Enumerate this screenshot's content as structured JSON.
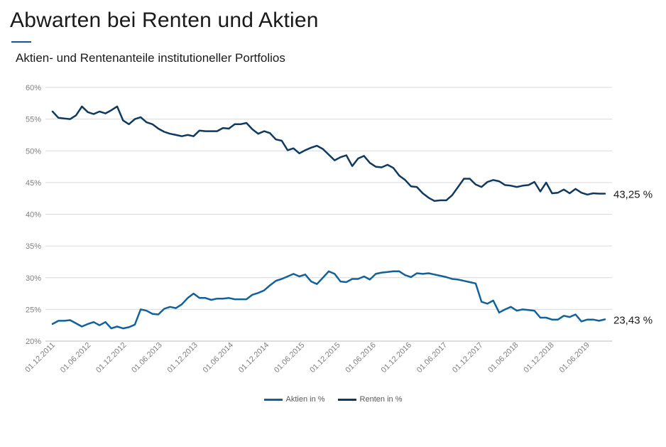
{
  "header": {
    "title": "Abwarten bei Renten und Aktien",
    "subtitle": "Aktien- und Rentenanteile institutioneller Portfolios"
  },
  "colors": {
    "aktien": "#11629b",
    "renten": "#0e3a5f",
    "grid": "#d9d9d9",
    "axis_text": "#7f7f7f",
    "accent": "#0f5a8a"
  },
  "chart_data": {
    "type": "line",
    "title": "",
    "xlabel": "",
    "ylabel": "",
    "ylim": [
      20,
      60
    ],
    "y_ticks": [
      "20%",
      "25%",
      "30%",
      "35%",
      "40%",
      "45%",
      "50%",
      "55%",
      "60%"
    ],
    "x_ticks": [
      "01.12.2011",
      "01.06.2012",
      "01.12.2012",
      "01.06.2013",
      "01.12.2013",
      "01.06.2014",
      "01.12.2014",
      "01.06.2015",
      "01.12.2015",
      "01.06.2016",
      "01.12.2016",
      "01.06.2017",
      "01.12.2017",
      "01.06.2018",
      "01.12.2018",
      "01.06.2019"
    ],
    "x_start": "2011-12",
    "x_end": "2019-09",
    "grid": true,
    "legend": "bottom",
    "series": [
      {
        "name": "Aktien in %",
        "end_label": "23,43 %",
        "values": [
          22.7,
          23.2,
          23.2,
          23.3,
          22.8,
          22.3,
          22.7,
          23.0,
          22.5,
          23.0,
          22.0,
          22.3,
          22.0,
          22.2,
          22.6,
          25.0,
          24.8,
          24.3,
          24.2,
          25.1,
          25.4,
          25.2,
          25.8,
          26.8,
          27.5,
          26.8,
          26.8,
          26.5,
          26.7,
          26.7,
          26.8,
          26.6,
          26.6,
          26.6,
          27.3,
          27.6,
          28.0,
          28.8,
          29.5,
          29.8,
          30.2,
          30.6,
          30.2,
          30.5,
          29.4,
          29.0,
          30.0,
          31.0,
          30.6,
          29.4,
          29.3,
          29.8,
          29.8,
          30.2,
          29.7,
          30.6,
          30.8,
          30.9,
          31.0,
          31.0,
          30.4,
          30.1,
          30.7,
          30.6,
          30.7,
          30.5,
          30.3,
          30.1,
          29.8,
          29.7,
          29.5,
          29.3,
          29.1,
          26.2,
          25.9,
          26.4,
          24.5,
          25.0,
          25.4,
          24.8,
          25.0,
          24.9,
          24.8,
          23.7,
          23.7,
          23.4,
          23.4,
          24.0,
          23.8,
          24.2,
          23.1,
          23.4,
          23.4,
          23.2,
          23.43
        ]
      },
      {
        "name": "Renten in %",
        "end_label": "43,25 %",
        "values": [
          56.2,
          55.2,
          55.1,
          55.0,
          55.6,
          57.0,
          56.1,
          55.8,
          56.2,
          55.9,
          56.4,
          57.0,
          54.8,
          54.2,
          55.0,
          55.3,
          54.5,
          54.2,
          53.5,
          53.0,
          52.7,
          52.5,
          52.3,
          52.5,
          52.3,
          53.2,
          53.1,
          53.1,
          53.1,
          53.6,
          53.5,
          54.2,
          54.2,
          54.4,
          53.4,
          52.7,
          53.1,
          52.8,
          51.8,
          51.6,
          50.1,
          50.4,
          49.6,
          50.1,
          50.5,
          50.8,
          50.3,
          49.4,
          48.5,
          49.0,
          49.3,
          47.6,
          48.8,
          49.2,
          48.1,
          47.5,
          47.4,
          47.8,
          47.3,
          46.1,
          45.4,
          44.4,
          44.3,
          43.3,
          42.6,
          42.1,
          42.2,
          42.2,
          43.0,
          44.3,
          45.6,
          45.6,
          44.7,
          44.3,
          45.1,
          45.4,
          45.2,
          44.6,
          44.5,
          44.3,
          44.5,
          44.6,
          45.1,
          43.6,
          45.0,
          43.3,
          43.4,
          43.9,
          43.3,
          44.0,
          43.4,
          43.1,
          43.3,
          43.25,
          43.25
        ]
      }
    ]
  }
}
